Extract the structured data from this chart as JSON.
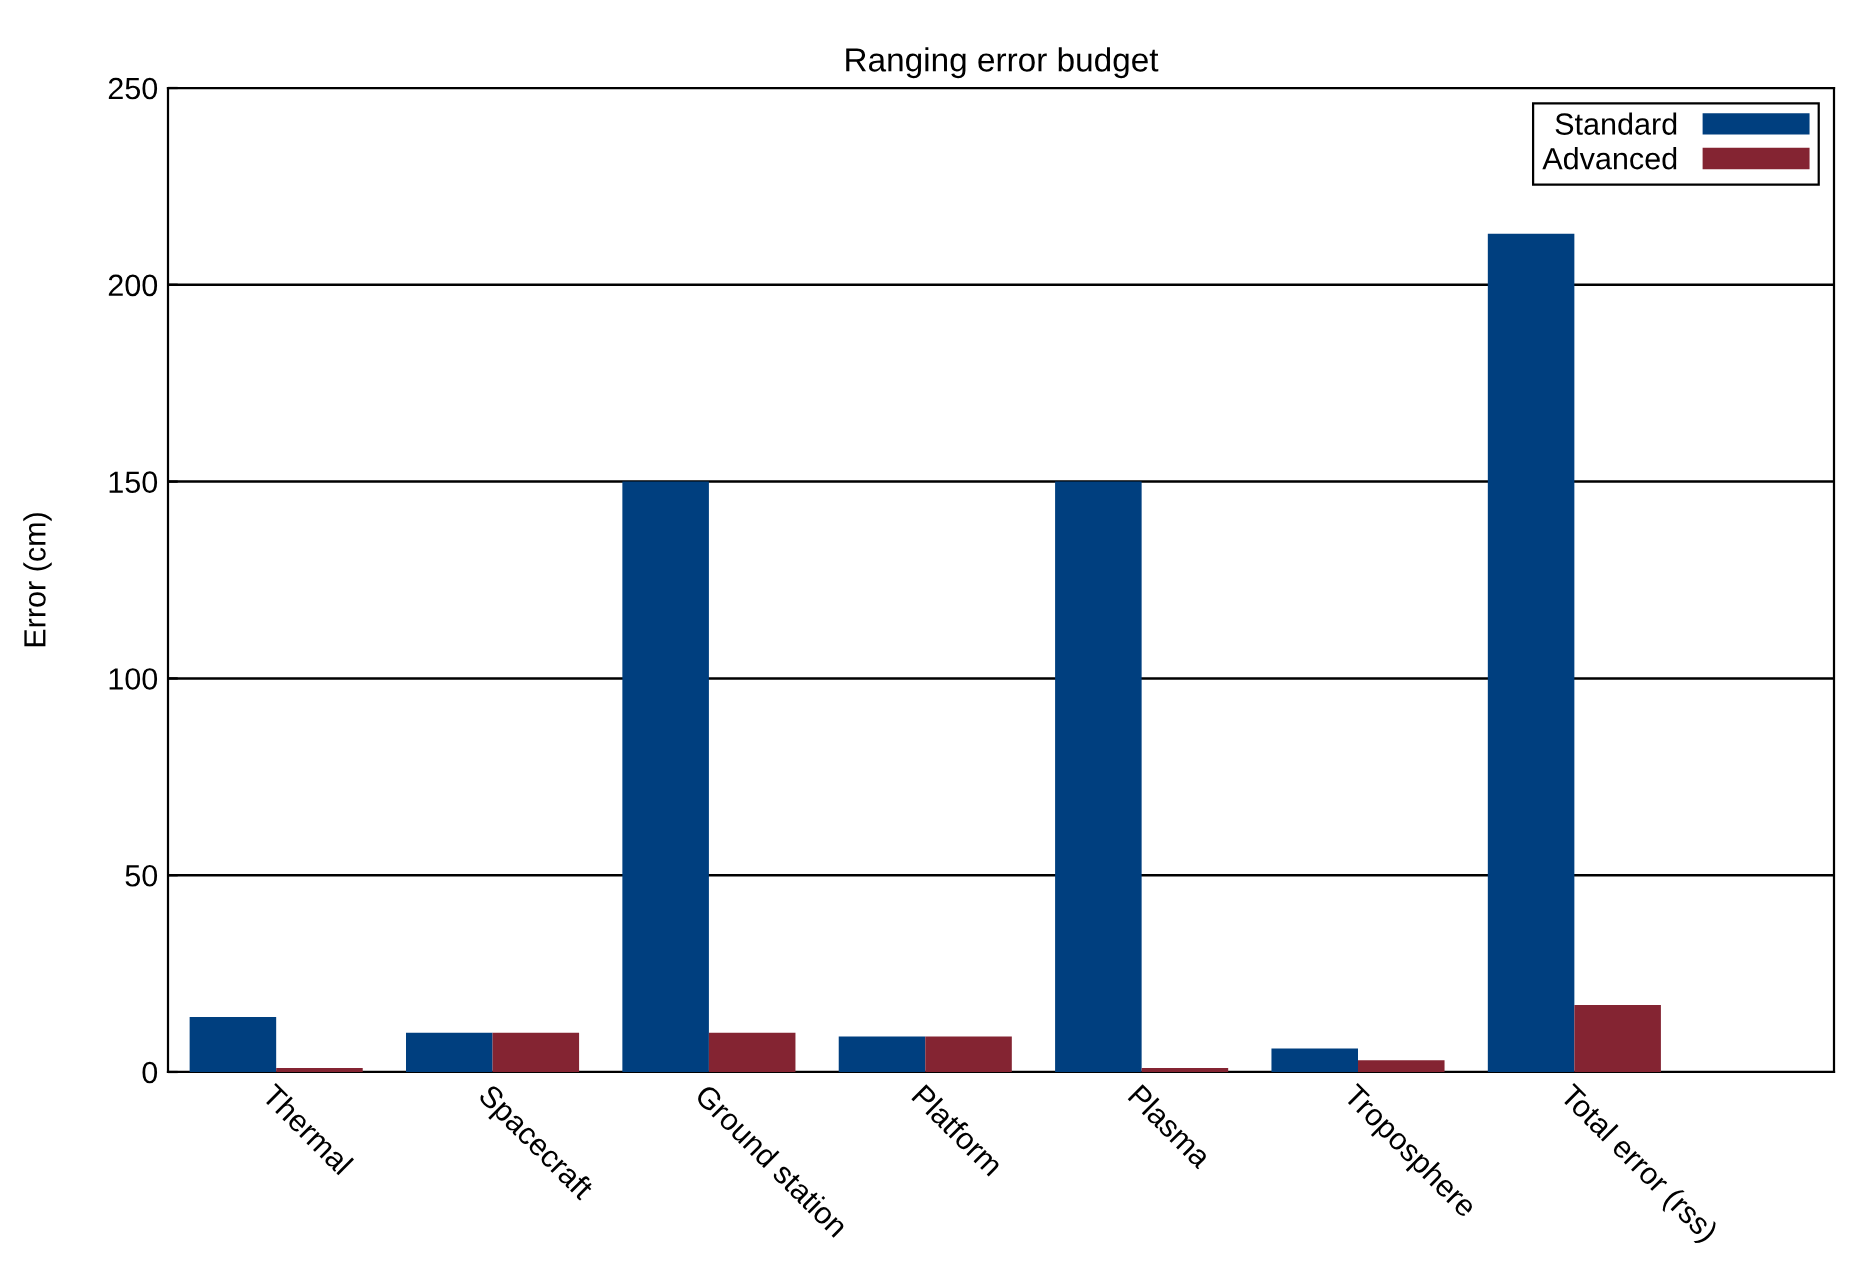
{
  "chart_data": {
    "type": "bar",
    "title": "Ranging error budget",
    "ylabel": "Error (cm)",
    "categories": [
      "Thermal",
      "Spacecraft",
      "Ground station",
      "Platform",
      "Plasma",
      "Troposphere",
      "Total error (rss)"
    ],
    "series": [
      {
        "name": "Standard",
        "color": "#003f7f",
        "values": [
          14,
          10,
          150,
          9,
          150,
          6,
          213
        ]
      },
      {
        "name": "Advanced",
        "color": "#842432",
        "values": [
          1,
          10,
          10,
          9,
          1,
          3,
          17
        ]
      }
    ],
    "ylim": [
      0,
      250
    ],
    "yticks": [
      0,
      50,
      100,
      150,
      200,
      250
    ],
    "grid": "y",
    "legend": "top right"
  }
}
